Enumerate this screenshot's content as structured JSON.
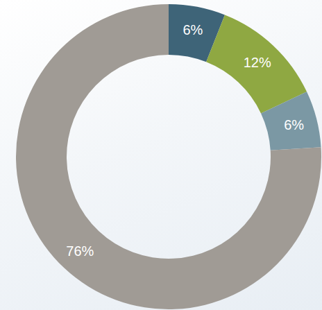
{
  "chart_data": {
    "type": "pie",
    "values": [
      6,
      12,
      6,
      76
    ],
    "value_labels": [
      "6%",
      "12%",
      "6%",
      "76%"
    ],
    "colors": [
      "#3e6478",
      "#8fa842",
      "#7b98a4",
      "#a09b95"
    ],
    "data_labels": true
  }
}
